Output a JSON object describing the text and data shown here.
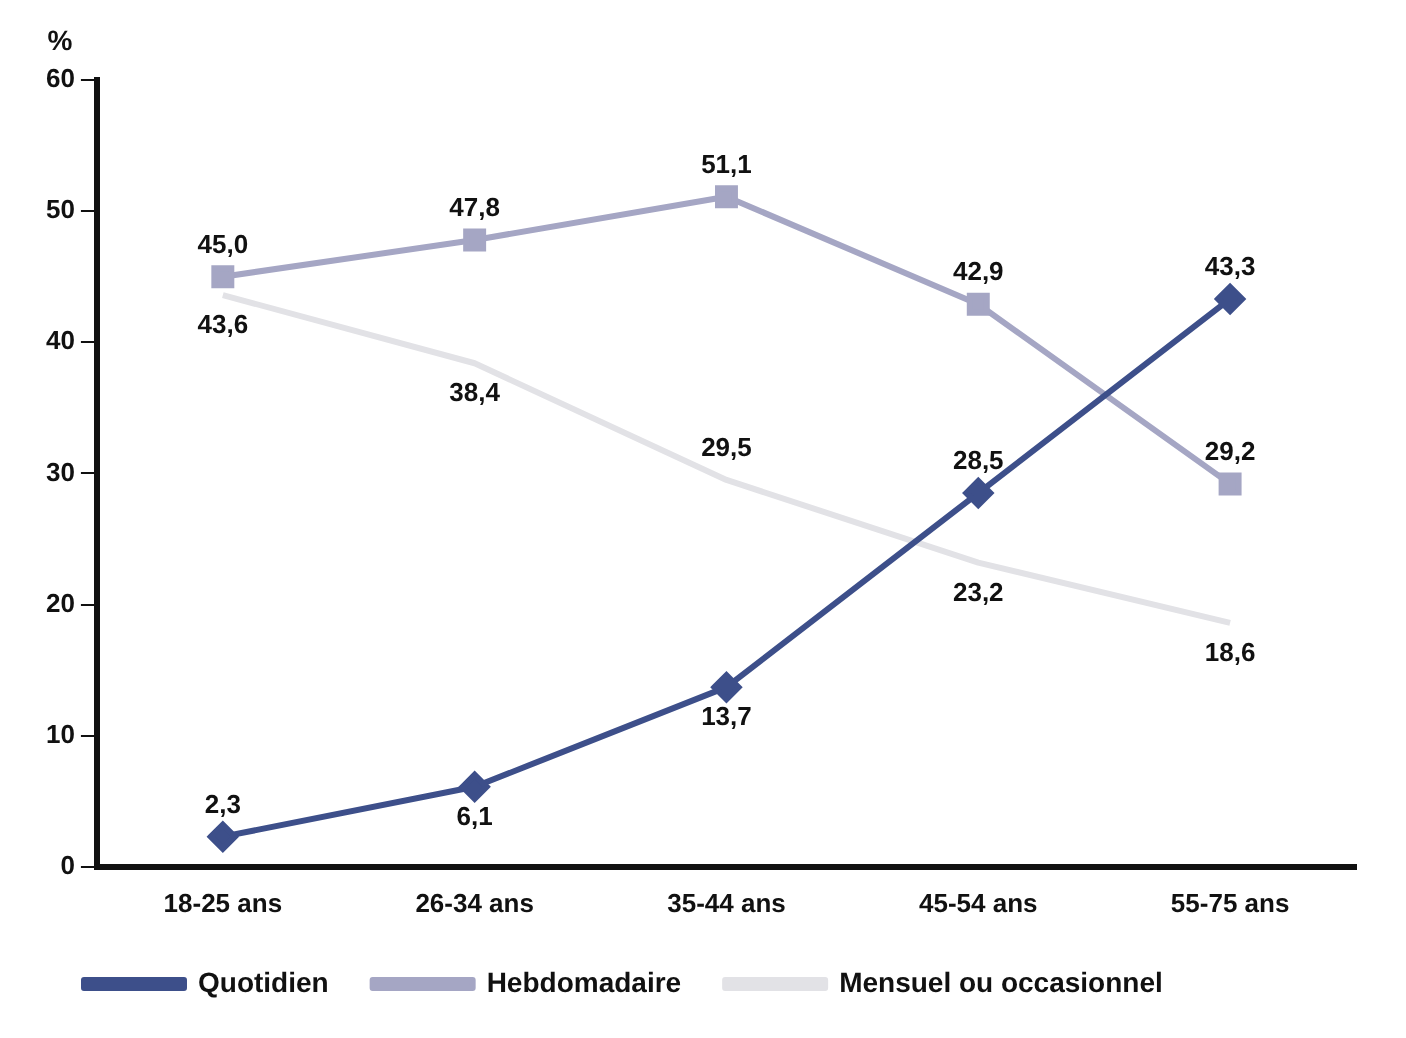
{
  "chart_data": {
    "type": "line",
    "ylabel": "%",
    "categories": [
      "18-25 ans",
      "26-34 ans",
      "35-44 ans",
      "45-54 ans",
      "55-75 ans"
    ],
    "ylim": [
      0,
      60
    ],
    "yticks": [
      0,
      10,
      20,
      30,
      40,
      50,
      60
    ],
    "grid": false,
    "legend": "bottom",
    "line_style": "solid",
    "series": [
      {
        "name": "Quotidien",
        "color": "#3d4f8a",
        "marker": "diamond",
        "values": [
          2.3,
          6.1,
          13.7,
          28.5,
          43.3
        ],
        "value_labels": [
          "2,3",
          "6,1",
          "13,7",
          "28,5",
          "43,3"
        ]
      },
      {
        "name": "Hebdomadaire",
        "color": "#a5a6c4",
        "marker": "square",
        "values": [
          45.0,
          47.8,
          51.1,
          42.9,
          29.2
        ],
        "value_labels": [
          "45,0",
          "47,8",
          "51,1",
          "42,9",
          "29,2"
        ]
      },
      {
        "name": "Mensuel ou occasionnel",
        "color": "#e2e2e6",
        "marker": "none",
        "values": [
          43.6,
          38.4,
          29.5,
          23.2,
          18.6
        ],
        "value_labels": [
          "43,6",
          "38,4",
          "29,5",
          "23,2",
          "18,6"
        ]
      }
    ]
  }
}
